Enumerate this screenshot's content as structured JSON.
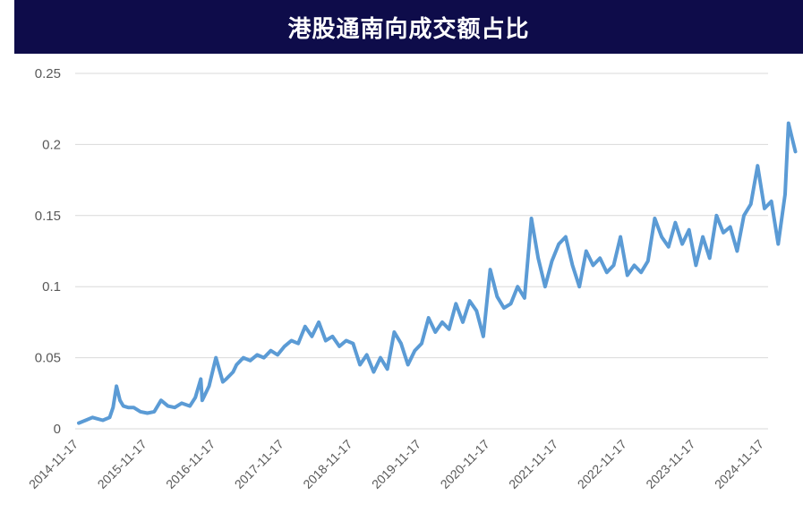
{
  "chart_data": {
    "type": "line",
    "title": "港股通南向成交额占比",
    "xlabel": "",
    "ylabel": "",
    "ylim": [
      0,
      0.25
    ],
    "yticks": [
      "0",
      "0.05",
      "0.1",
      "0.15",
      "0.2",
      "0.25"
    ],
    "xticks": [
      "2014-11-17",
      "2015-11-17",
      "2016-11-17",
      "2017-11-17",
      "2018-11-17",
      "2019-11-17",
      "2020-11-17",
      "2021-11-17",
      "2022-11-17",
      "2023-11-17",
      "2024-11-17"
    ],
    "grid": true,
    "legend": "none",
    "line_color": "#5b9bd5",
    "series": [
      {
        "x": [
          0,
          0.1,
          0.2,
          0.35,
          0.45,
          0.5,
          0.55,
          0.6,
          0.65,
          0.72,
          0.8,
          0.9,
          1.0,
          1.1,
          1.2,
          1.3,
          1.4,
          1.5,
          1.62,
          1.7,
          1.78,
          1.8,
          1.9,
          2.0,
          2.1,
          2.15,
          2.25,
          2.3,
          2.4,
          2.5,
          2.6,
          2.7,
          2.8,
          2.9,
          3.0,
          3.1,
          3.2,
          3.3,
          3.4,
          3.5,
          3.6,
          3.7,
          3.8,
          3.9,
          4.0,
          4.1,
          4.2,
          4.3,
          4.4,
          4.5,
          4.6,
          4.7,
          4.8,
          4.9,
          5.0,
          5.1,
          5.2,
          5.3,
          5.4,
          5.5,
          5.6,
          5.7,
          5.8,
          5.9,
          6.0,
          6.1,
          6.2,
          6.3,
          6.4,
          6.5,
          6.6,
          6.7,
          6.8,
          6.9,
          7.0,
          7.1,
          7.2,
          7.3,
          7.4,
          7.5,
          7.6,
          7.7,
          7.8,
          7.9,
          8.0,
          8.1,
          8.2,
          8.3,
          8.4,
          8.5,
          8.6,
          8.7,
          8.8,
          8.9,
          9.0,
          9.1,
          9.2,
          9.3,
          9.4,
          9.5,
          9.6,
          9.7,
          9.8,
          9.9,
          10.0,
          10.1,
          10.2,
          10.3,
          10.35,
          10.4,
          10.45
        ],
        "values": [
          0.004,
          0.006,
          0.008,
          0.006,
          0.008,
          0.015,
          0.03,
          0.02,
          0.016,
          0.015,
          0.015,
          0.012,
          0.011,
          0.012,
          0.02,
          0.016,
          0.015,
          0.018,
          0.016,
          0.022,
          0.035,
          0.02,
          0.03,
          0.05,
          0.033,
          0.035,
          0.04,
          0.045,
          0.05,
          0.048,
          0.052,
          0.05,
          0.055,
          0.052,
          0.058,
          0.062,
          0.06,
          0.072,
          0.065,
          0.075,
          0.062,
          0.065,
          0.058,
          0.062,
          0.06,
          0.045,
          0.052,
          0.04,
          0.05,
          0.042,
          0.068,
          0.06,
          0.045,
          0.055,
          0.06,
          0.078,
          0.068,
          0.075,
          0.07,
          0.088,
          0.075,
          0.09,
          0.083,
          0.065,
          0.112,
          0.093,
          0.085,
          0.088,
          0.1,
          0.092,
          0.148,
          0.12,
          0.1,
          0.118,
          0.13,
          0.135,
          0.115,
          0.1,
          0.125,
          0.115,
          0.12,
          0.11,
          0.115,
          0.135,
          0.108,
          0.115,
          0.11,
          0.118,
          0.148,
          0.135,
          0.128,
          0.145,
          0.13,
          0.14,
          0.115,
          0.135,
          0.12,
          0.15,
          0.138,
          0.142,
          0.125,
          0.15,
          0.158,
          0.185,
          0.155,
          0.16,
          0.13,
          0.165,
          0.215,
          0.205,
          0.195
        ]
      }
    ]
  }
}
